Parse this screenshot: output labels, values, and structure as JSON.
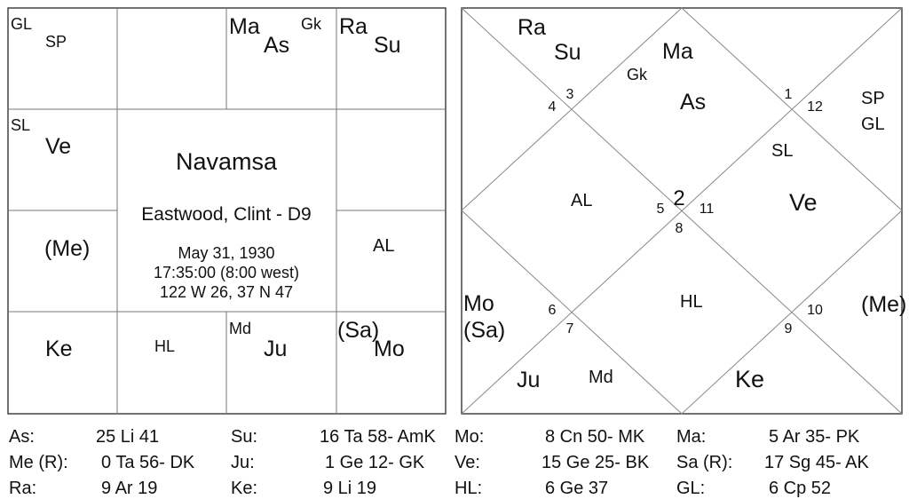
{
  "south_chart": {
    "title": "Navamsa",
    "subtitle": "Eastwood, Clint - D9",
    "date": "May 31, 1930",
    "time": "17:35:00 (8:00 west)",
    "coords": "122 W 26, 37 N 47",
    "labels": {
      "gl": "GL",
      "sp": "SP",
      "ma": "Ma",
      "as": "As",
      "gk": "Gk",
      "ra": "Ra",
      "su": "Su",
      "sl": "SL",
      "ve": "Ve",
      "me": "(Me)",
      "al": "AL",
      "ke": "Ke",
      "hl": "HL",
      "md": "Md",
      "ju": "Ju",
      "sa": "(Sa)",
      "mo": "Mo"
    }
  },
  "north_chart": {
    "house_numbers": {
      "h1": "1",
      "h2": "2",
      "h3": "3",
      "h4": "4",
      "h5": "5",
      "h6": "6",
      "h7": "7",
      "h8": "8",
      "h9": "9",
      "h10": "10",
      "h11": "11",
      "h12": "12"
    },
    "labels": {
      "ra": "Ra",
      "su": "Su",
      "ma": "Ma",
      "gk": "Gk",
      "as": "As",
      "sp": "SP",
      "gl": "GL",
      "sl": "SL",
      "al": "AL",
      "ve": "Ve",
      "hl": "HL",
      "mo": "Mo",
      "sa": "(Sa)",
      "me": "(Me)",
      "ju": "Ju",
      "md": "Md",
      "ke": "Ke"
    }
  },
  "positions": [
    {
      "label": "As:",
      "value": "25 Li 41"
    },
    {
      "label": "Su:",
      "value": "16 Ta 58- AmK"
    },
    {
      "label": "Mo:",
      "value": "8 Cn 50- MK"
    },
    {
      "label": "Ma:",
      "value": "5 Ar 35- PK"
    },
    {
      "label": "Me (R):",
      "value": "0 Ta 56- DK"
    },
    {
      "label": "Ju:",
      "value": "1 Ge 12- GK"
    },
    {
      "label": "Ve:",
      "value": "15 Ge 25- BK"
    },
    {
      "label": "Sa (R):",
      "value": "17 Sg 45- AK"
    },
    {
      "label": "Ra:",
      "value": "9 Ar 19"
    },
    {
      "label": "Ke:",
      "value": "9 Li 19"
    },
    {
      "label": "HL:",
      "value": "6 Ge 37"
    },
    {
      "label": "GL:",
      "value": "6 Cp 52"
    }
  ]
}
